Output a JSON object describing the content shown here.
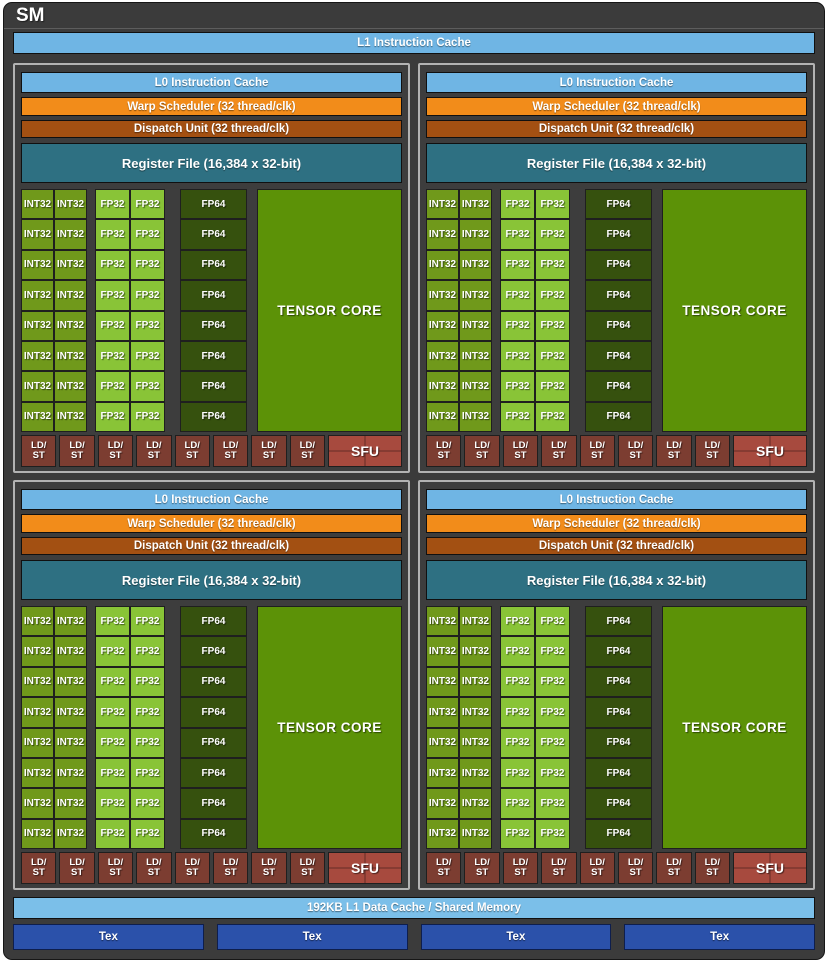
{
  "sm": {
    "title": "SM",
    "l1_instruction_cache": "L1 Instruction Cache",
    "l1_data_cache": "192KB L1 Data Cache / Shared Memory"
  },
  "block": {
    "count": 4,
    "core_rows": 8,
    "ldst_count": 8,
    "l0_instruction_cache": "L0 Instruction Cache",
    "warp_scheduler": "Warp Scheduler (32 thread/clk)",
    "dispatch_unit": "Dispatch Unit (32 thread/clk)",
    "register_file": "Register File (16,384 x 32-bit)",
    "int32": "INT32",
    "fp32": "FP32",
    "fp64": "FP64",
    "tensor_core": "TENSOR CORE",
    "ldst_line1": "LD/",
    "ldst_line2": "ST",
    "sfu": "SFU"
  },
  "tex": {
    "count": 4,
    "label": "Tex"
  },
  "colors": {
    "background": "#3b3b3b",
    "instruction_cache_blue": "#6fb5e4",
    "data_cache_blue": "#7bbfe9",
    "warp_scheduler_orange": "#f28c1a",
    "dispatch_unit_brown": "#a35012",
    "register_file_teal": "#2e7082",
    "int32_green": "#70991b",
    "fp32_green": "#89c437",
    "fp64_green": "#36510e",
    "tensor_green": "#5c9207",
    "ldst_red": "#7c3d31",
    "sfu_red": "#a74a3e",
    "tex_blue": "#2b51aa"
  }
}
